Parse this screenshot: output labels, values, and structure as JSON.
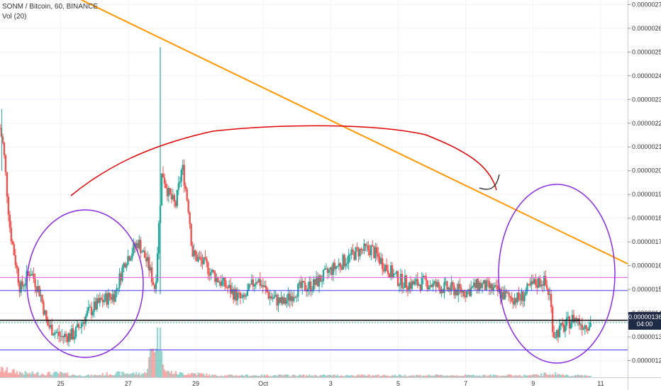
{
  "legend": {
    "symbol_line": "SONM / Bitcoin, 60, BINANCE",
    "volume_line": "Vol (20)"
  },
  "price_badge": {
    "price": "0.00000136",
    "countdown": "04:00",
    "color": "#1f2a44"
  },
  "colors": {
    "up": "#26a69a",
    "down": "#ef5350",
    "trendline": "#ff9800",
    "red_drawing": "#e00000",
    "purple_drawing": "#8a2be2",
    "magenta_level": "#e05ce0",
    "blue_level": "#4a3aff",
    "black_level": "#000000",
    "teal_dotted": "#26a69a"
  },
  "chart_data": {
    "type": "candlestick",
    "title": "SONM / Bitcoin, 60, BINANCE",
    "xlabel": "",
    "ylabel": "",
    "y_tick_labels": [
      "0.00000270",
      "0.00000260",
      "0.00000250",
      "0.00000240",
      "0.00000230",
      "0.00000220",
      "0.00000210",
      "0.00000200",
      "0.00000190",
      "0.00000180",
      "0.00000170",
      "0.00000160",
      "0.00000150",
      "0.00000140",
      "0.00000130",
      "0.00000120"
    ],
    "y_ticks": [
      270,
      260,
      250,
      240,
      230,
      220,
      210,
      200,
      190,
      180,
      170,
      160,
      150,
      140,
      130,
      120
    ],
    "ylim_satoshi": [
      113,
      271
    ],
    "x_tick_labels": [
      "25",
      "27",
      "29",
      "Oct",
      "3",
      "5",
      "7",
      "9",
      "11"
    ],
    "x_ticks": [
      25,
      27,
      29,
      31,
      33,
      35,
      37,
      39,
      41
    ],
    "xlim_days": [
      23.2,
      41.8
    ],
    "series_note": "approximate hourly price path in satoshi (1e-8 BTC), read from chart",
    "price_path": [
      [
        23.2,
        218
      ],
      [
        23.3,
        210
      ],
      [
        23.5,
        175
      ],
      [
        23.8,
        150
      ],
      [
        24.1,
        158
      ],
      [
        24.4,
        148
      ],
      [
        24.6,
        135
      ],
      [
        25.0,
        130
      ],
      [
        25.4,
        131
      ],
      [
        25.8,
        140
      ],
      [
        26.2,
        145
      ],
      [
        26.6,
        148
      ],
      [
        26.9,
        162
      ],
      [
        27.3,
        170
      ],
      [
        27.6,
        160
      ],
      [
        27.8,
        150
      ],
      [
        28.0,
        200
      ],
      [
        28.2,
        190
      ],
      [
        28.4,
        185
      ],
      [
        28.6,
        202
      ],
      [
        28.8,
        183
      ],
      [
        28.9,
        165
      ],
      [
        29.3,
        160
      ],
      [
        29.6,
        155
      ],
      [
        30.0,
        150
      ],
      [
        30.4,
        145
      ],
      [
        30.8,
        155
      ],
      [
        31.2,
        147
      ],
      [
        31.6,
        144
      ],
      [
        32.0,
        150
      ],
      [
        32.5,
        152
      ],
      [
        33.0,
        158
      ],
      [
        33.4,
        162
      ],
      [
        33.8,
        166
      ],
      [
        34.2,
        167
      ],
      [
        34.6,
        160
      ],
      [
        35.0,
        154
      ],
      [
        35.4,
        152
      ],
      [
        35.8,
        153
      ],
      [
        36.2,
        151
      ],
      [
        36.6,
        150
      ],
      [
        37.0,
        149
      ],
      [
        37.4,
        152
      ],
      [
        37.8,
        150
      ],
      [
        38.2,
        147
      ],
      [
        38.6,
        146
      ],
      [
        39.0,
        152
      ],
      [
        39.3,
        154
      ],
      [
        39.5,
        147
      ],
      [
        39.6,
        131
      ],
      [
        39.9,
        134
      ],
      [
        40.2,
        138
      ],
      [
        40.5,
        135
      ],
      [
        40.7,
        136
      ]
    ],
    "volume_path": [
      [
        23.2,
        4
      ],
      [
        23.6,
        3
      ],
      [
        24.0,
        2
      ],
      [
        24.5,
        2
      ],
      [
        25.0,
        2
      ],
      [
        25.5,
        1
      ],
      [
        26.0,
        1
      ],
      [
        26.5,
        2
      ],
      [
        27.0,
        2
      ],
      [
        27.5,
        2
      ],
      [
        27.95,
        28
      ],
      [
        28.1,
        3
      ],
      [
        28.5,
        2
      ],
      [
        29.0,
        2
      ],
      [
        29.5,
        1
      ],
      [
        30.0,
        1
      ],
      [
        31.0,
        1
      ],
      [
        32.0,
        1
      ],
      [
        33.0,
        1
      ],
      [
        34.0,
        1
      ],
      [
        35.0,
        1
      ],
      [
        36.0,
        1
      ],
      [
        37.0,
        1
      ],
      [
        38.0,
        1
      ],
      [
        39.0,
        1
      ],
      [
        39.6,
        2
      ],
      [
        40.0,
        1
      ],
      [
        40.7,
        1
      ]
    ],
    "horizontal_levels": [
      {
        "value": 155,
        "color": "#e05ce0"
      },
      {
        "value": 149.5,
        "color": "#4a3aff"
      },
      {
        "value": 137,
        "color": "#000000"
      },
      {
        "value": 136,
        "color": "#26a69a",
        "dashed": true
      },
      {
        "value": 124.5,
        "color": "#4a3aff"
      }
    ]
  }
}
